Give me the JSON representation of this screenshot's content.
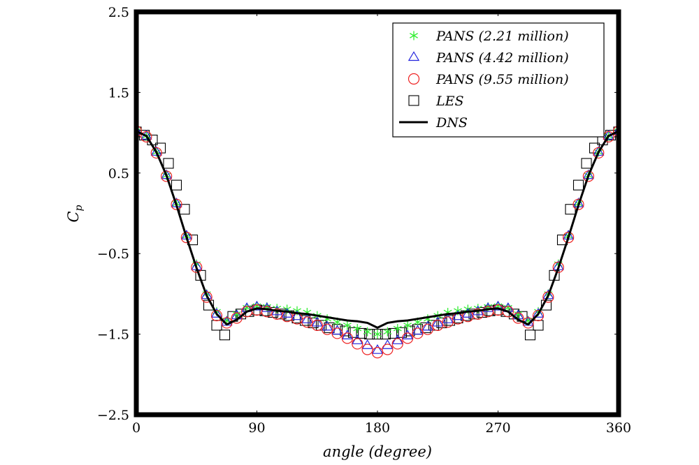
{
  "chart_data": {
    "type": "line",
    "xlabel": "angle (degree)",
    "ylabel": "C",
    "ylabel_sub": "p",
    "xlim": [
      0,
      360
    ],
    "ylim": [
      -2.5,
      2.5
    ],
    "xticks": [
      0,
      90,
      180,
      270,
      360
    ],
    "yticks": [
      -2.5,
      -1.5,
      -0.5,
      0.5,
      1.5,
      2.5
    ],
    "xtick_labels": [
      "0",
      "90",
      "180",
      "270",
      "360"
    ],
    "ytick_labels": [
      "−2.5",
      "−1.5",
      "−0.5",
      "0.5",
      "1.5",
      "2.5"
    ],
    "grid": false,
    "legend_position": "top-right",
    "series": [
      {
        "name": "PANS (2.21 million)",
        "legend_main": "PANS",
        "legend_paren": "(2.21 million)",
        "marker": "star",
        "color": "#33ee33",
        "x": [
          0,
          7.5,
          15,
          22.5,
          30,
          37.5,
          45,
          52.5,
          60,
          67.5,
          75,
          82.5,
          90,
          97.5,
          105,
          112.5,
          120,
          127.5,
          135,
          142.5,
          150,
          157.5,
          165,
          172.5,
          180,
          187.5,
          195,
          202.5,
          210,
          217.5,
          225,
          232.5,
          240,
          247.5,
          255,
          262.5,
          270,
          277.5,
          285,
          292.5,
          300,
          307.5,
          315,
          322.5,
          330,
          337.5,
          345,
          352.5,
          360
        ],
        "y": [
          1.02,
          0.96,
          0.76,
          0.47,
          0.12,
          -0.28,
          -0.63,
          -1.0,
          -1.22,
          -1.33,
          -1.25,
          -1.17,
          -1.15,
          -1.16,
          -1.18,
          -1.19,
          -1.21,
          -1.23,
          -1.27,
          -1.31,
          -1.35,
          -1.39,
          -1.43,
          -1.47,
          -1.5,
          -1.47,
          -1.43,
          -1.39,
          -1.35,
          -1.31,
          -1.27,
          -1.23,
          -1.21,
          -1.19,
          -1.18,
          -1.16,
          -1.15,
          -1.17,
          -1.25,
          -1.33,
          -1.22,
          -1.0,
          -0.63,
          -0.28,
          0.12,
          0.47,
          0.76,
          0.96,
          1.02
        ]
      },
      {
        "name": "PANS (4.42 million)",
        "legend_main": "PANS",
        "legend_paren": "(4.42 million)",
        "marker": "triangle",
        "color": "#2222dd",
        "x": [
          0,
          7.5,
          15,
          22.5,
          30,
          37.5,
          45,
          52.5,
          60,
          67.5,
          75,
          82.5,
          90,
          97.5,
          105,
          112.5,
          120,
          127.5,
          135,
          142.5,
          150,
          157.5,
          165,
          172.5,
          180,
          187.5,
          195,
          202.5,
          210,
          217.5,
          225,
          232.5,
          240,
          247.5,
          255,
          262.5,
          270,
          277.5,
          285,
          292.5,
          300,
          307.5,
          315,
          322.5,
          330,
          337.5,
          345,
          352.5,
          360
        ],
        "y": [
          1.02,
          0.96,
          0.76,
          0.47,
          0.12,
          -0.28,
          -0.66,
          -1.02,
          -1.25,
          -1.35,
          -1.27,
          -1.18,
          -1.16,
          -1.18,
          -1.22,
          -1.25,
          -1.28,
          -1.32,
          -1.36,
          -1.41,
          -1.46,
          -1.52,
          -1.58,
          -1.64,
          -1.7,
          -1.64,
          -1.58,
          -1.52,
          -1.46,
          -1.41,
          -1.36,
          -1.32,
          -1.28,
          -1.25,
          -1.22,
          -1.18,
          -1.16,
          -1.18,
          -1.27,
          -1.35,
          -1.25,
          -1.02,
          -0.66,
          -0.28,
          0.12,
          0.47,
          0.76,
          0.96,
          1.02
        ]
      },
      {
        "name": "PANS (9.55 million)",
        "legend_main": "PANS",
        "legend_paren": "(9.55 million)",
        "marker": "circle",
        "color": "#ee2222",
        "x": [
          0,
          7.5,
          15,
          22.5,
          30,
          37.5,
          45,
          52.5,
          60,
          67.5,
          75,
          82.5,
          90,
          97.5,
          105,
          112.5,
          120,
          127.5,
          135,
          142.5,
          150,
          157.5,
          165,
          172.5,
          180,
          187.5,
          195,
          202.5,
          210,
          217.5,
          225,
          232.5,
          240,
          247.5,
          255,
          262.5,
          270,
          277.5,
          285,
          292.5,
          300,
          307.5,
          315,
          322.5,
          330,
          337.5,
          345,
          352.5,
          360
        ],
        "y": [
          1.02,
          0.95,
          0.75,
          0.46,
          0.11,
          -0.3,
          -0.67,
          -1.04,
          -1.27,
          -1.36,
          -1.3,
          -1.22,
          -1.2,
          -1.22,
          -1.25,
          -1.28,
          -1.31,
          -1.35,
          -1.39,
          -1.44,
          -1.49,
          -1.55,
          -1.62,
          -1.69,
          -1.73,
          -1.69,
          -1.62,
          -1.55,
          -1.49,
          -1.44,
          -1.39,
          -1.35,
          -1.31,
          -1.28,
          -1.25,
          -1.22,
          -1.2,
          -1.22,
          -1.3,
          -1.36,
          -1.27,
          -1.04,
          -0.67,
          -0.3,
          0.11,
          0.46,
          0.75,
          0.95,
          1.02
        ]
      },
      {
        "name": "LES",
        "legend_main": "LES",
        "legend_paren": "",
        "marker": "square",
        "color": "#000000",
        "x": [
          0,
          6,
          12,
          18,
          24,
          30,
          36,
          42,
          48,
          54,
          60,
          66,
          72,
          78,
          84,
          90,
          96,
          102,
          108,
          114,
          120,
          126,
          132,
          138,
          144,
          150,
          156,
          162,
          168,
          174,
          180,
          186,
          192,
          198,
          204,
          210,
          216,
          222,
          228,
          234,
          240,
          246,
          252,
          258,
          264,
          270,
          276,
          282,
          288,
          294,
          300,
          306,
          312,
          318,
          324,
          330,
          336,
          342,
          348,
          354,
          360
        ],
        "y": [
          1.01,
          0.97,
          0.91,
          0.81,
          0.62,
          0.35,
          0.05,
          -0.33,
          -0.77,
          -1.14,
          -1.39,
          -1.51,
          -1.28,
          -1.25,
          -1.22,
          -1.2,
          -1.21,
          -1.23,
          -1.25,
          -1.27,
          -1.3,
          -1.33,
          -1.36,
          -1.39,
          -1.42,
          -1.44,
          -1.46,
          -1.48,
          -1.49,
          -1.5,
          -1.5,
          -1.5,
          -1.49,
          -1.48,
          -1.46,
          -1.44,
          -1.42,
          -1.39,
          -1.36,
          -1.33,
          -1.3,
          -1.27,
          -1.25,
          -1.23,
          -1.21,
          -1.2,
          -1.22,
          -1.25,
          -1.28,
          -1.51,
          -1.39,
          -1.14,
          -0.77,
          -0.33,
          0.05,
          0.35,
          0.62,
          0.81,
          0.91,
          0.97,
          1.01
        ]
      },
      {
        "name": "DNS",
        "legend_main": "DNS",
        "legend_paren": "",
        "marker": "line",
        "color": "#000000",
        "x": [
          0,
          7.5,
          15,
          22.5,
          30,
          37.5,
          45,
          52.5,
          60,
          67.5,
          75,
          82.5,
          90,
          97.5,
          105,
          112.5,
          120,
          127.5,
          135,
          142.5,
          150,
          157.5,
          165,
          172.5,
          180,
          187.5,
          195,
          202.5,
          210,
          217.5,
          225,
          232.5,
          240,
          247.5,
          255,
          262.5,
          270,
          277.5,
          285,
          292.5,
          300,
          307.5,
          315,
          322.5,
          330,
          337.5,
          345,
          352.5,
          360
        ],
        "y": [
          1.02,
          0.96,
          0.76,
          0.47,
          0.1,
          -0.3,
          -0.68,
          -1.02,
          -1.25,
          -1.38,
          -1.32,
          -1.22,
          -1.18,
          -1.19,
          -1.21,
          -1.22,
          -1.24,
          -1.25,
          -1.27,
          -1.29,
          -1.31,
          -1.33,
          -1.34,
          -1.36,
          -1.42,
          -1.36,
          -1.34,
          -1.33,
          -1.31,
          -1.29,
          -1.27,
          -1.25,
          -1.24,
          -1.22,
          -1.21,
          -1.19,
          -1.18,
          -1.22,
          -1.32,
          -1.38,
          -1.25,
          -1.02,
          -0.68,
          -0.3,
          0.1,
          0.47,
          0.76,
          0.96,
          1.02
        ]
      }
    ]
  }
}
